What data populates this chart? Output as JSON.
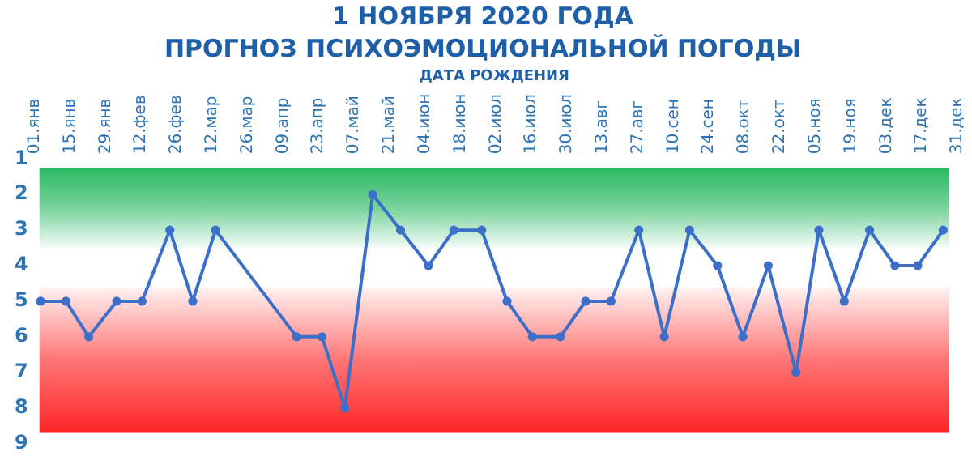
{
  "chart_data": {
    "type": "line",
    "title": "1 НОЯБРЯ 2020 ГОДА",
    "subtitle": "ПРОГНОЗ ПСИХОЭМОЦИОНАЛЬНОЙ ПОГОДЫ",
    "xlabel": "ДАТА РОЖДЕНИЯ",
    "x": [
      "--01-04",
      "--01-14",
      "--01-23",
      "--02-03",
      "--02-13",
      "--02-24",
      "--03-05",
      "--03-14",
      "--04-15",
      "--04-25",
      "--05-04",
      "--05-15",
      "--05-26",
      "--06-06",
      "--06-16",
      "--06-27",
      "--07-07",
      "--07-17",
      "--07-28",
      "--08-07",
      "--08-17",
      "--08-28",
      "--09-07",
      "--09-17",
      "--09-28",
      "--10-08",
      "--10-18",
      "--10-29",
      "--11-07",
      "--11-17",
      "--11-27",
      "--12-07",
      "--12-16",
      "--12-26"
    ],
    "series": [
      {
        "color": "#3b6fc9",
        "values": [
          5,
          5,
          6,
          5,
          5,
          3,
          5,
          3,
          6,
          6,
          8,
          2,
          3,
          4,
          3,
          3,
          5,
          6,
          6,
          5,
          5,
          3,
          6,
          3,
          4,
          6,
          4,
          7,
          3,
          5,
          3,
          4,
          4,
          3
        ]
      }
    ],
    "xlim": [
      "--01-01",
      "--12-31"
    ],
    "xticks": [
      {
        "value": "--01-01",
        "label": "01.янв"
      },
      {
        "value": "--01-15",
        "label": "15.янв"
      },
      {
        "value": "--01-29",
        "label": "29.янв"
      },
      {
        "value": "--02-12",
        "label": "12.фев"
      },
      {
        "value": "--02-26",
        "label": "26.фев"
      },
      {
        "value": "--03-12",
        "label": "12.мар"
      },
      {
        "value": "--03-26",
        "label": "26.мар"
      },
      {
        "value": "--04-09",
        "label": "09.апр"
      },
      {
        "value": "--04-23",
        "label": "23.апр"
      },
      {
        "value": "--05-07",
        "label": "07.май"
      },
      {
        "value": "--05-21",
        "label": "21.май"
      },
      {
        "value": "--06-04",
        "label": "04.июн"
      },
      {
        "value": "--06-18",
        "label": "18.июн"
      },
      {
        "value": "--07-02",
        "label": "02.июл"
      },
      {
        "value": "--07-16",
        "label": "16.июл"
      },
      {
        "value": "--07-30",
        "label": "30.июл"
      },
      {
        "value": "--08-13",
        "label": "13.авг"
      },
      {
        "value": "--08-27",
        "label": "27.авг"
      },
      {
        "value": "--09-10",
        "label": "10.сен"
      },
      {
        "value": "--09-24",
        "label": "24.сен"
      },
      {
        "value": "--10-08",
        "label": "08.окт"
      },
      {
        "value": "--10-22",
        "label": "22.окт"
      },
      {
        "value": "--11-05",
        "label": "05.ноя"
      },
      {
        "value": "--11-19",
        "label": "19.ноя"
      },
      {
        "value": "--12-03",
        "label": "03.дек"
      },
      {
        "value": "--12-17",
        "label": "17.дек"
      },
      {
        "value": "--12-31",
        "label": "31.дек"
      }
    ],
    "ylim": [
      9,
      1
    ],
    "yticks": [
      1,
      2,
      3,
      4,
      5,
      6,
      7,
      8,
      9
    ],
    "bands": [
      {
        "axis": "y",
        "from": 1.25,
        "to": 3.5,
        "color": "#1fb55a"
      },
      {
        "axis": "y",
        "from": 4.6,
        "to": 8.7,
        "color": "#ff1a1a"
      }
    ],
    "marker": "circle",
    "line_style": "solid",
    "grid": false,
    "legend": false
  }
}
